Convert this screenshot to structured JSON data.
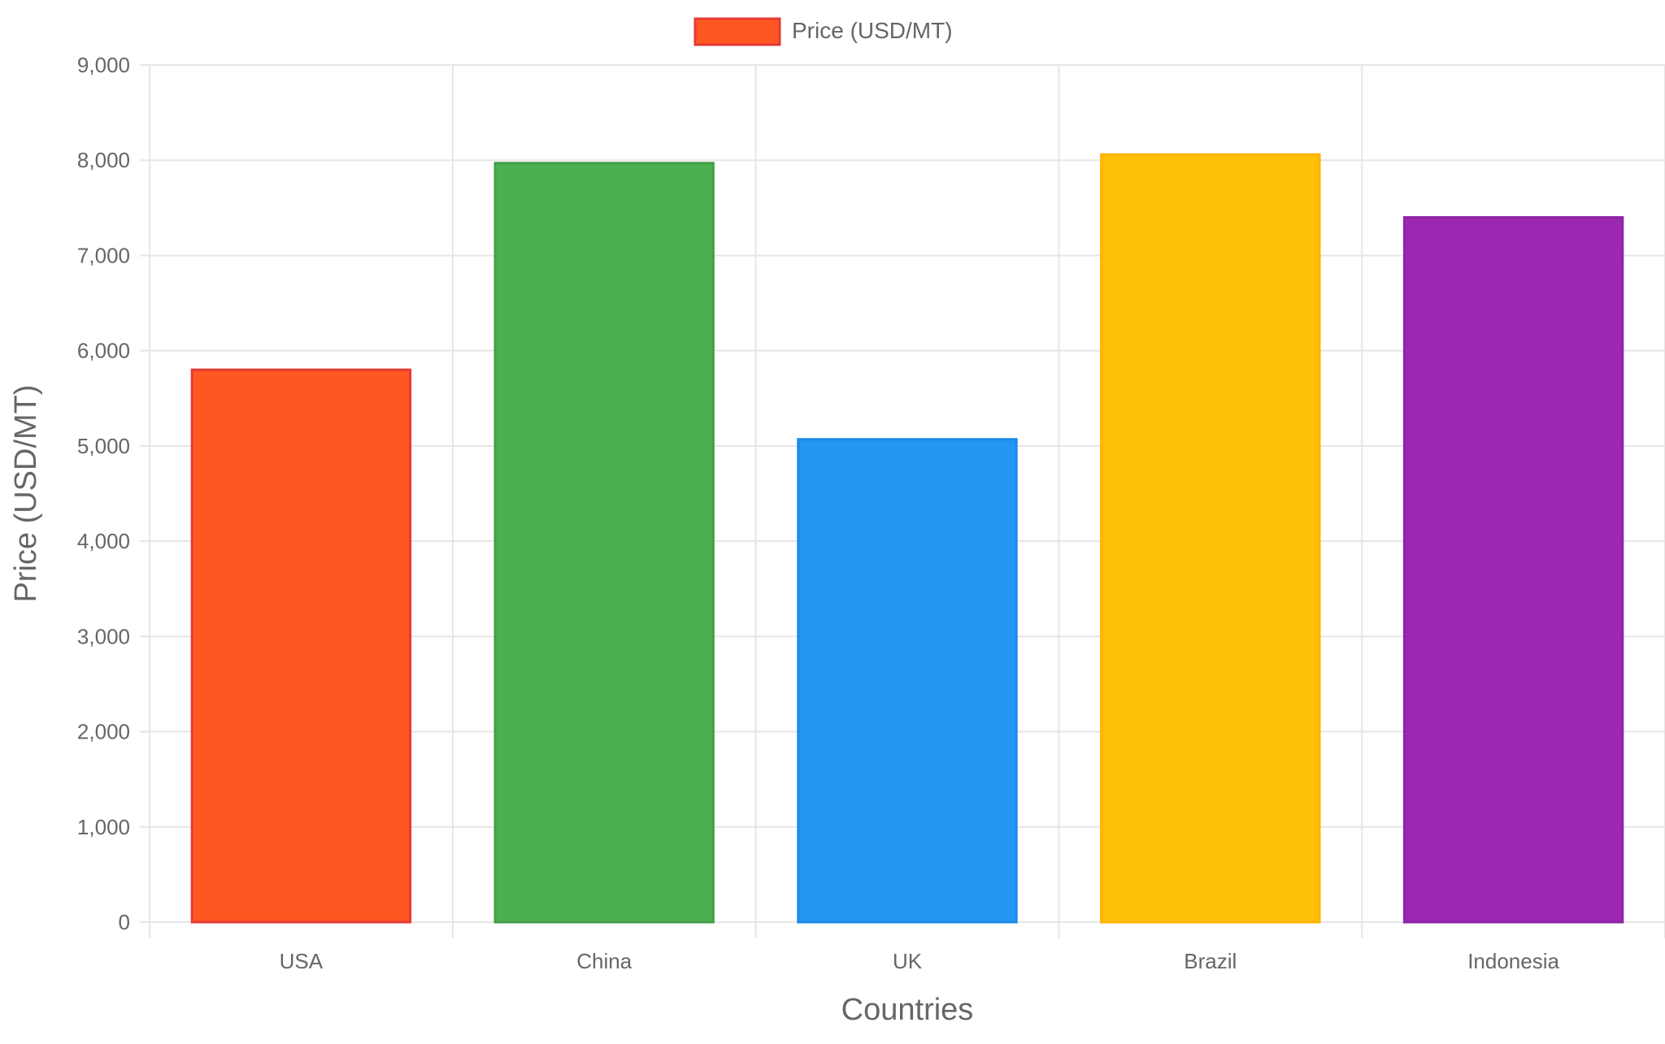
{
  "chart_data": {
    "type": "bar",
    "categories": [
      "USA",
      "China",
      "UK",
      "Brazil",
      "Indonesia"
    ],
    "series": [
      {
        "name": "Price (USD/MT)",
        "values": [
          5800,
          7970,
          5070,
          8060,
          7400
        ],
        "colors": [
          "#FF5722",
          "#4CAF50",
          "#2196F3",
          "#FFC107",
          "#9C27B0"
        ],
        "borderColors": [
          "#E53935",
          "#43A047",
          "#1E88E5",
          "#FFB300",
          "#8E24AA"
        ]
      }
    ],
    "title": "",
    "xlabel": "Countries",
    "ylabel": "Price (USD/MT)",
    "ylim": [
      0,
      9000
    ],
    "yticks": [
      0,
      1000,
      2000,
      3000,
      4000,
      5000,
      6000,
      7000,
      8000,
      9000
    ],
    "ytick_labels": [
      "0",
      "1,000",
      "2,000",
      "3,000",
      "4,000",
      "5,000",
      "6,000",
      "7,000",
      "8,000",
      "9,000"
    ],
    "grid": true,
    "legend": "top-center",
    "legend_color": "#FF5722",
    "legend_border": "#E53935"
  }
}
